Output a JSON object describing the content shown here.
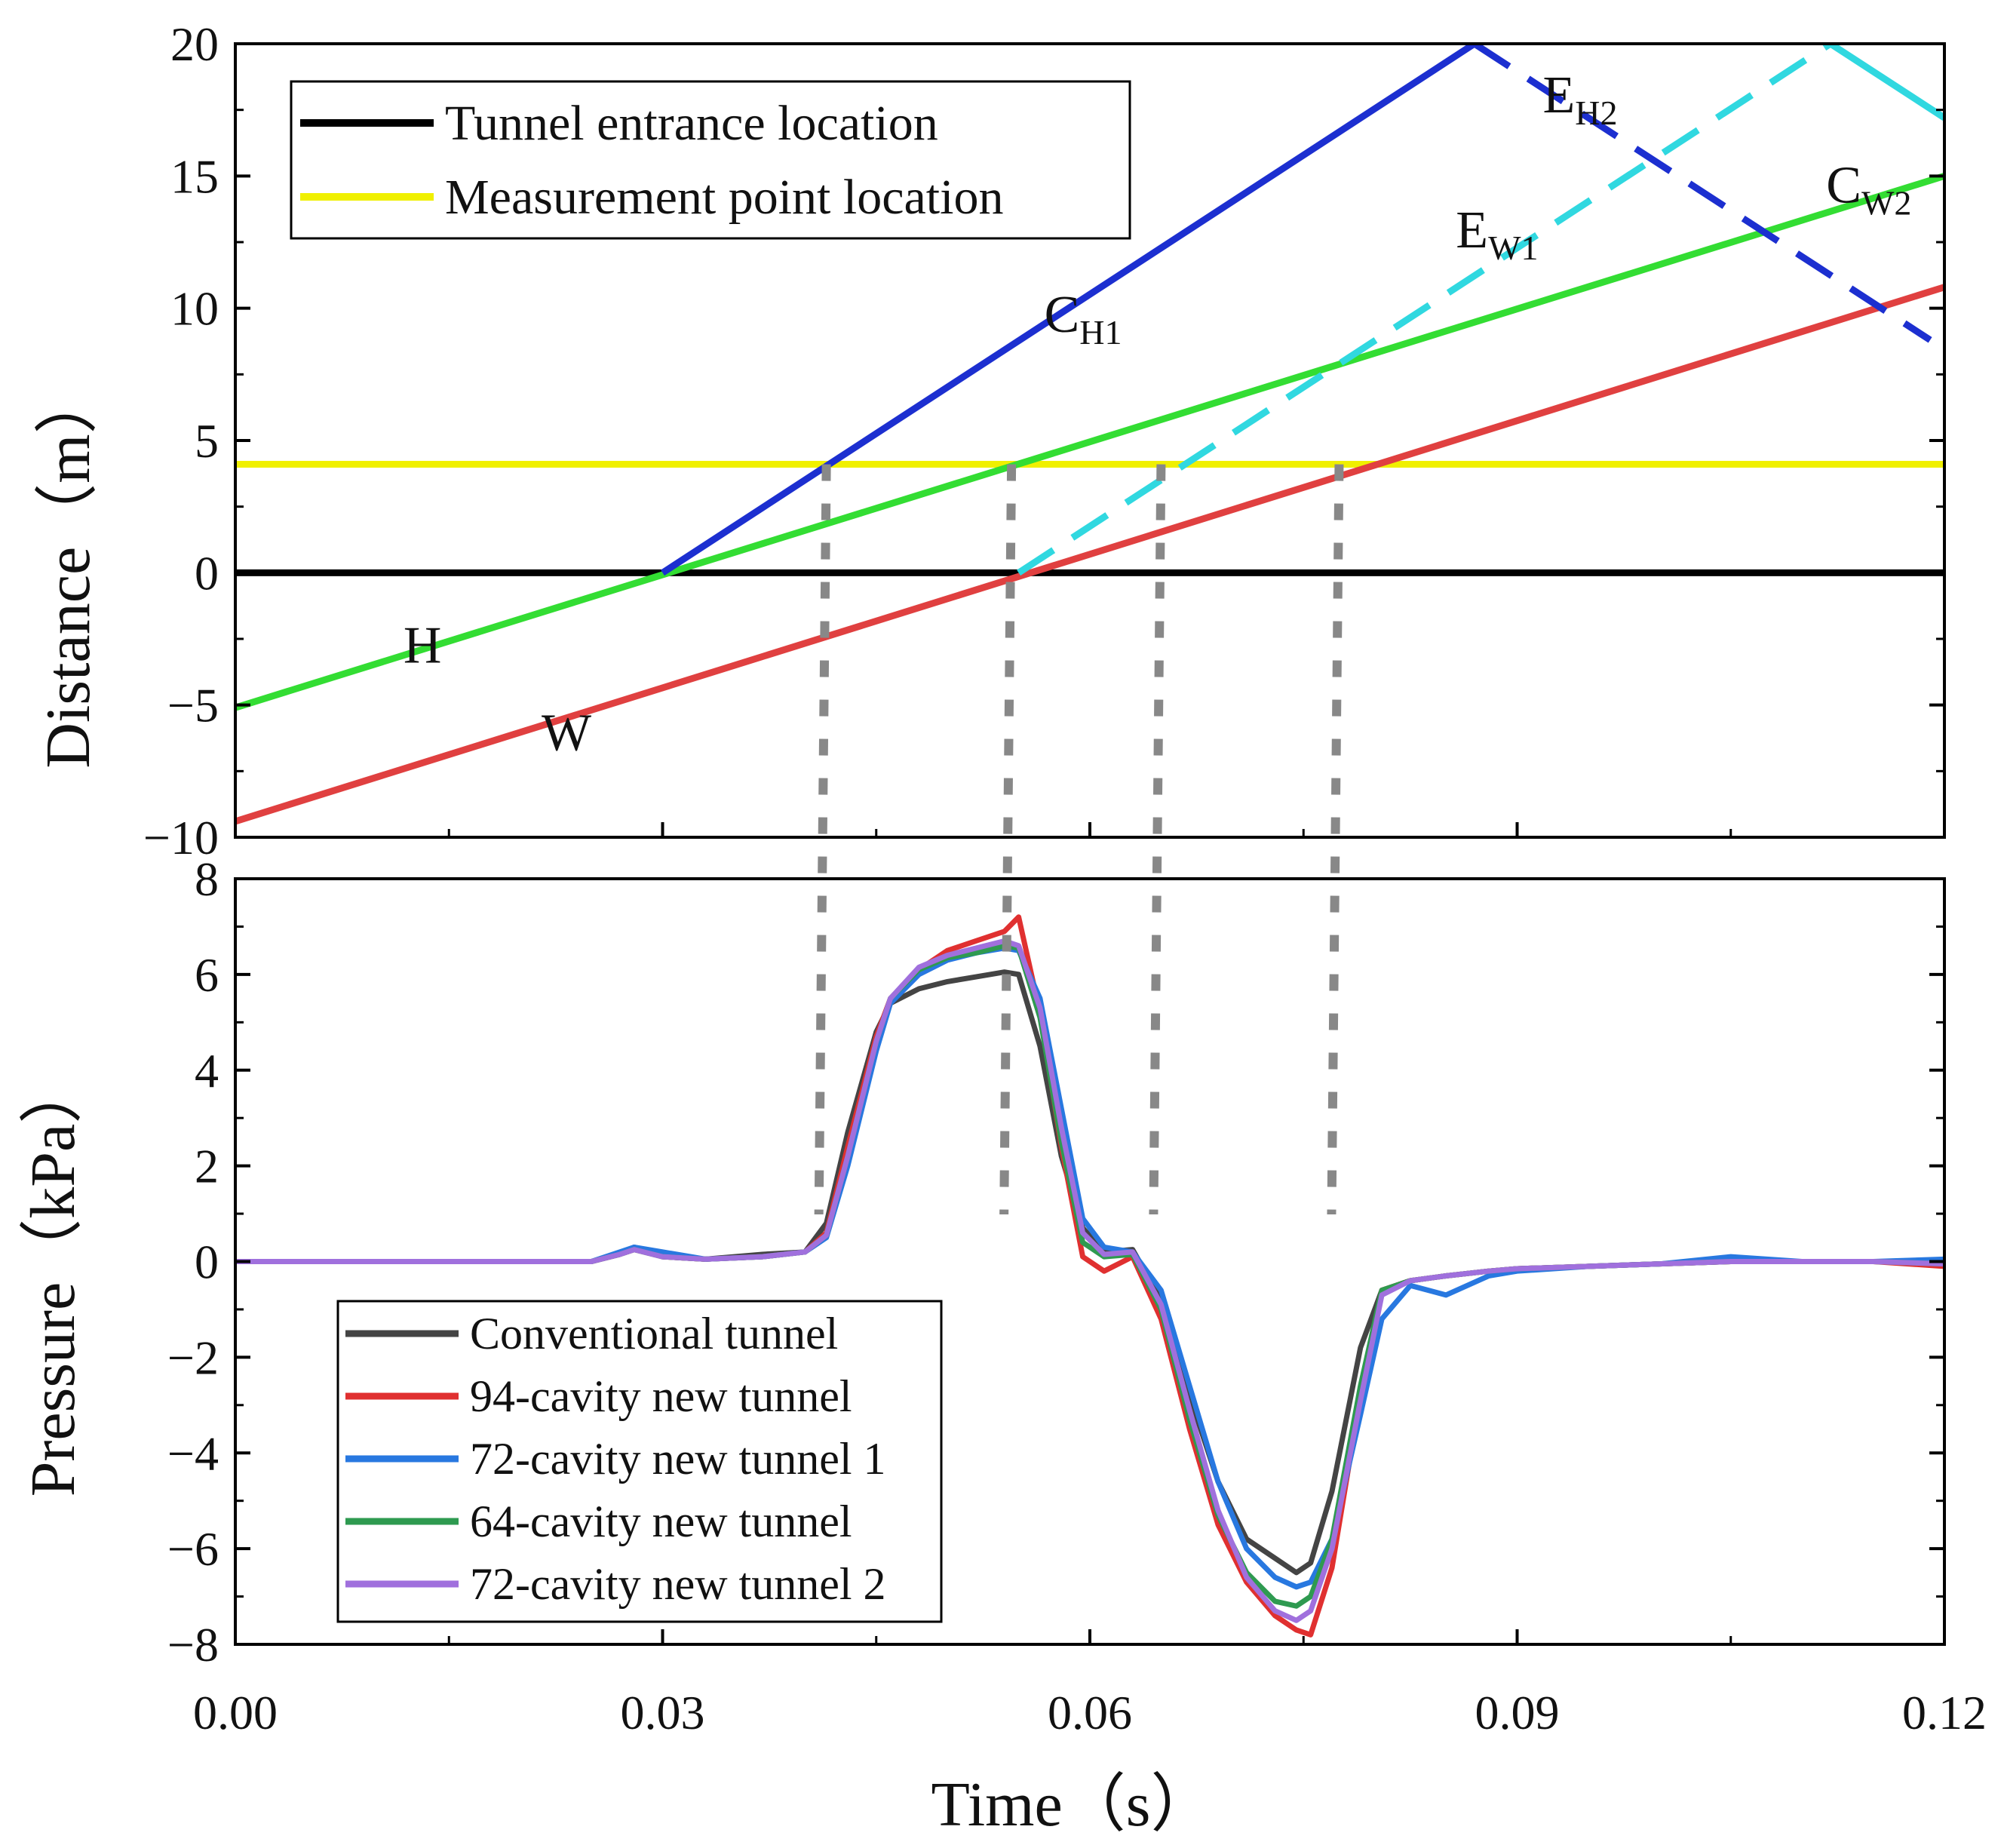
{
  "chart_data": [
    {
      "type": "line",
      "xlim": [
        0,
        0.12
      ],
      "ylim": [
        -10,
        20
      ],
      "ylabel": "Distance（m）",
      "yticks": [
        -10,
        -5,
        0,
        5,
        10,
        15,
        20
      ],
      "ytick_labels": [
        "−10",
        "−5",
        "0",
        "5",
        "10",
        "15",
        "20"
      ],
      "xticks": [
        0,
        0.03,
        0.06,
        0.09,
        0.12
      ],
      "grid": false,
      "legend_position": "top-left",
      "legend": [
        {
          "label": "Tunnel entrance location",
          "color": "#000000"
        },
        {
          "label": "Measurement point location",
          "color": "#f0f000"
        }
      ],
      "series": [
        {
          "color": "#000000",
          "style": "solid",
          "points": [
            [
              0,
              0
            ],
            [
              0.12,
              0
            ]
          ]
        },
        {
          "color": "#f0f000",
          "style": "solid",
          "points": [
            [
              0,
              4.1
            ],
            [
              0.12,
              4.1
            ]
          ]
        },
        {
          "color": "#33dd33",
          "style": "solid",
          "points": [
            [
              0,
              -5.1
            ],
            [
              0.12,
              15.0
            ]
          ]
        },
        {
          "color": "#e04040",
          "style": "solid",
          "points": [
            [
              0,
              -9.4
            ],
            [
              0.12,
              10.8
            ]
          ]
        },
        {
          "color": "#1c2fd0",
          "style": "solid",
          "points": [
            [
              0.03,
              0
            ],
            [
              0.087,
              20
            ]
          ]
        },
        {
          "color": "#1c2fd0",
          "style": "dashed",
          "points": [
            [
              0.087,
              20
            ],
            [
              0.119,
              8.8
            ]
          ]
        },
        {
          "color": "#30d8e0",
          "style": "dashed",
          "points": [
            [
              0.055,
              0
            ],
            [
              0.112,
              20
            ]
          ]
        },
        {
          "color": "#30d8e0",
          "style": "solid",
          "points": [
            [
              0.112,
              20
            ],
            [
              0.12,
              17.2
            ]
          ]
        }
      ],
      "annotations": [
        {
          "text": "H",
          "sub": "",
          "x": 0.0118,
          "y": -3.4
        },
        {
          "text": "W",
          "sub": "",
          "x": 0.0215,
          "y": -6.7
        },
        {
          "text": "C",
          "sub": "H1",
          "x": 0.0568,
          "y": 9.1
        },
        {
          "text": "E",
          "sub": "W1",
          "x": 0.0857,
          "y": 12.3
        },
        {
          "text": "E",
          "sub": "H2",
          "x": 0.0918,
          "y": 17.4
        },
        {
          "text": "C",
          "sub": "W2",
          "x": 0.1117,
          "y": 14.0
        }
      ],
      "vertical_markers": [
        0.0415,
        0.0545,
        0.065,
        0.0775
      ]
    },
    {
      "type": "line",
      "xlim": [
        0,
        0.12
      ],
      "ylim": [
        -8,
        8
      ],
      "xlabel": "Time（s）",
      "ylabel": "Pressure（kPa）",
      "yticks": [
        -8,
        -6,
        -4,
        -2,
        0,
        2,
        4,
        6,
        8
      ],
      "ytick_labels": [
        "−8",
        "−6",
        "−4",
        "−2",
        "0",
        "2",
        "4",
        "6",
        "8"
      ],
      "xticks": [
        0,
        0.03,
        0.06,
        0.09,
        0.12
      ],
      "xtick_labels": [
        "0.00",
        "0.03",
        "0.06",
        "0.09",
        "0.12"
      ],
      "grid": false,
      "legend_position": "bottom-left",
      "x": [
        0,
        0.025,
        0.027,
        0.028,
        0.03,
        0.033,
        0.037,
        0.04,
        0.0415,
        0.043,
        0.045,
        0.046,
        0.048,
        0.05,
        0.052,
        0.054,
        0.055,
        0.0565,
        0.058,
        0.0595,
        0.061,
        0.063,
        0.065,
        0.067,
        0.069,
        0.071,
        0.073,
        0.0745,
        0.0755,
        0.077,
        0.079,
        0.0805,
        0.0825,
        0.085,
        0.088,
        0.09,
        0.095,
        0.1,
        0.105,
        0.11,
        0.115,
        0.12
      ],
      "series": [
        {
          "name": "Conventional tunnel",
          "color": "#444444",
          "values": [
            0,
            0,
            0.15,
            0.3,
            0.1,
            0.05,
            0.15,
            0.2,
            0.8,
            2.7,
            4.8,
            5.4,
            5.7,
            5.85,
            5.95,
            6.05,
            6.0,
            4.5,
            2.2,
            0.7,
            0.2,
            0.25,
            -0.8,
            -2.8,
            -4.6,
            -5.8,
            -6.2,
            -6.5,
            -6.3,
            -4.8,
            -1.8,
            -0.6,
            -0.4,
            -0.3,
            -0.2,
            -0.15,
            -0.1,
            -0.05,
            0,
            0,
            0,
            0
          ]
        },
        {
          "name": "94-cavity new tunnel",
          "color": "#e03030",
          "values": [
            0,
            0,
            0.15,
            0.25,
            0.1,
            0.05,
            0.1,
            0.2,
            0.6,
            2.4,
            4.7,
            5.5,
            6.1,
            6.5,
            6.7,
            6.9,
            7.2,
            5.2,
            2.4,
            0.1,
            -0.2,
            0.1,
            -1.2,
            -3.5,
            -5.5,
            -6.7,
            -7.4,
            -7.7,
            -7.8,
            -6.4,
            -2.8,
            -0.6,
            -0.4,
            -0.3,
            -0.2,
            -0.15,
            -0.1,
            -0.05,
            0,
            0,
            0,
            -0.1
          ]
        },
        {
          "name": "72-cavity new tunnel 1",
          "color": "#2878e0",
          "values": [
            0,
            0,
            0.2,
            0.3,
            0.2,
            0.05,
            0.1,
            0.2,
            0.5,
            2.0,
            4.4,
            5.4,
            6.0,
            6.3,
            6.45,
            6.55,
            6.5,
            5.5,
            3.2,
            0.9,
            0.3,
            0.2,
            -0.6,
            -2.6,
            -4.6,
            -6.0,
            -6.6,
            -6.8,
            -6.7,
            -5.8,
            -3.2,
            -1.2,
            -0.5,
            -0.7,
            -0.3,
            -0.2,
            -0.1,
            -0.05,
            0.1,
            0,
            0,
            0.05
          ]
        },
        {
          "name": "64-cavity new tunnel",
          "color": "#2e9a50",
          "values": [
            0,
            0,
            0.15,
            0.25,
            0.1,
            0.05,
            0.1,
            0.2,
            0.55,
            2.2,
            4.6,
            5.5,
            6.1,
            6.35,
            6.45,
            6.6,
            6.55,
            5.1,
            2.5,
            0.4,
            0.1,
            0.15,
            -1.0,
            -3.3,
            -5.3,
            -6.5,
            -7.1,
            -7.2,
            -7.0,
            -5.8,
            -2.6,
            -0.6,
            -0.4,
            -0.3,
            -0.2,
            -0.15,
            -0.1,
            -0.05,
            0,
            0,
            0,
            -0.05
          ]
        },
        {
          "name": "72-cavity new tunnel 2",
          "color": "#a070dd",
          "values": [
            0,
            0,
            0.15,
            0.25,
            0.1,
            0.05,
            0.1,
            0.2,
            0.55,
            2.2,
            4.6,
            5.5,
            6.15,
            6.4,
            6.55,
            6.7,
            6.6,
            5.3,
            2.8,
            0.6,
            0.15,
            0.2,
            -0.9,
            -3.1,
            -5.2,
            -6.6,
            -7.3,
            -7.5,
            -7.3,
            -6.0,
            -2.9,
            -0.7,
            -0.4,
            -0.3,
            -0.2,
            -0.15,
            -0.1,
            -0.05,
            0,
            0,
            0,
            -0.05
          ]
        }
      ]
    }
  ]
}
